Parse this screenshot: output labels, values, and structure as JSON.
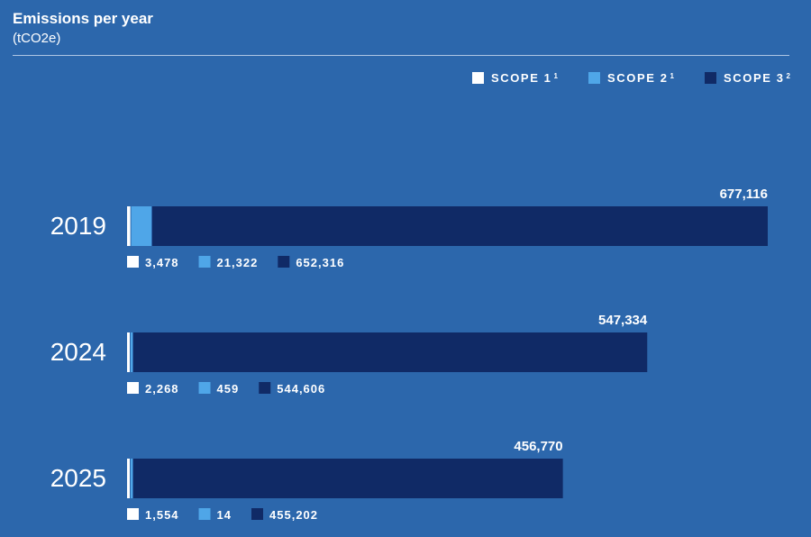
{
  "header": {
    "title": "Emissions per year",
    "subtitle": "(tCO2e)"
  },
  "legend": [
    {
      "label": "SCOPE 1",
      "sup": "1",
      "color": "#ffffff"
    },
    {
      "label": "SCOPE 2",
      "sup": "1",
      "color": "#4fa6e8"
    },
    {
      "label": "SCOPE 3",
      "sup": "2",
      "color": "#102a66"
    }
  ],
  "chart_data": {
    "type": "bar",
    "orientation": "horizontal",
    "stacked": true,
    "title": "Emissions per year",
    "subtitle": "(tCO2e)",
    "categories": [
      "2019",
      "2024",
      "2025"
    ],
    "series": [
      {
        "name": "SCOPE 1",
        "values": [
          3478,
          2268,
          1554
        ],
        "labels": [
          "3,478",
          "2,268",
          "1,554"
        ],
        "color": "#ffffff"
      },
      {
        "name": "SCOPE 2",
        "values": [
          21322,
          459,
          14
        ],
        "labels": [
          "21,322",
          "459",
          "14"
        ],
        "color": "#4fa6e8"
      },
      {
        "name": "SCOPE 3",
        "values": [
          652316,
          544606,
          455202
        ],
        "labels": [
          "652,316",
          "544,606",
          "455,202"
        ],
        "color": "#102a66"
      }
    ],
    "totals": [
      677116,
      547334,
      456770
    ],
    "total_labels": [
      "677,116",
      "547,334",
      "456,770"
    ],
    "grid": false,
    "legend_position": "top-right"
  }
}
